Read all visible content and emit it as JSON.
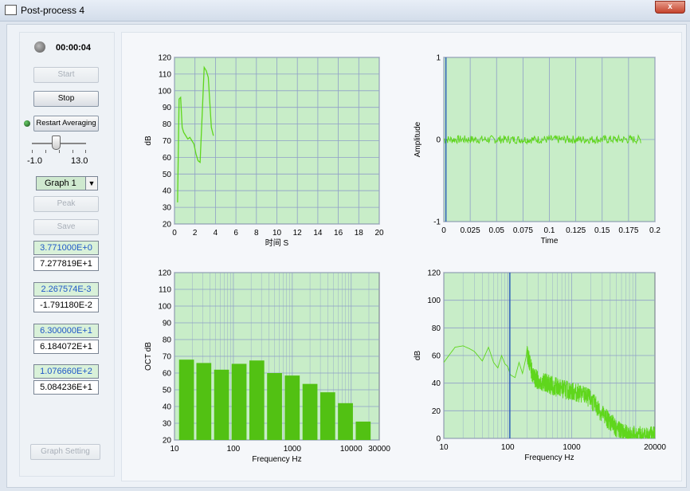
{
  "window": {
    "title": "Post-process 4",
    "close_label": "x"
  },
  "left_panel": {
    "elapsed_time": "00:00:04",
    "start_label": "Start",
    "stop_label": "Stop",
    "restart_label": "Restart Averaging",
    "slider_min": "-1.0",
    "slider_max": "13.0",
    "graph_select": "Graph 1",
    "peak_label": "Peak",
    "save_label": "Save",
    "values": [
      "3.771000E+0",
      "7.277819E+1",
      "2.267574E-3",
      "-1.791180E-2",
      "6.300000E+1",
      "6.184072E+1",
      "1.076660E+2",
      "5.084236E+1"
    ],
    "graph_setting_label": "Graph Setting"
  },
  "colors": {
    "plot_bg": "#c8edc8",
    "bar": "#52c113",
    "line": "#5fd61c",
    "cursor": "#2c5fb8",
    "grid": "#8f9fc7"
  },
  "chart_data": [
    {
      "type": "line",
      "xlabel": "时间 S",
      "ylabel": "dB",
      "xlim": [
        0,
        20
      ],
      "ylim": [
        20,
        120
      ],
      "x_ticks": [
        "0",
        "2",
        "4",
        "6",
        "8",
        "10",
        "12",
        "14",
        "16",
        "18",
        "20"
      ],
      "y_ticks": [
        "20",
        "30",
        "40",
        "50",
        "60",
        "70",
        "80",
        "90",
        "100",
        "110",
        "120"
      ],
      "series": [
        {
          "x": [
            0.3,
            0.45,
            0.6,
            0.75,
            0.9,
            1.1,
            1.3,
            1.5,
            1.7,
            1.9,
            2.1,
            2.3,
            2.5,
            2.7,
            2.9,
            3.1,
            3.3,
            3.6,
            3.8
          ],
          "y": [
            33,
            95,
            96,
            78,
            75,
            73,
            71,
            72,
            70,
            68,
            62,
            58,
            57,
            85,
            114,
            112,
            108,
            78,
            73
          ]
        }
      ]
    },
    {
      "type": "line",
      "xlabel": "Time",
      "ylabel": "Amplitude",
      "xlim": [
        0,
        0.2
      ],
      "ylim": [
        -1,
        1
      ],
      "x_ticks": [
        "0",
        "0.025",
        "0.05",
        "0.075",
        "0.1",
        "0.125",
        "0.15",
        "0.175",
        "0.2"
      ],
      "y_ticks": [
        "-1",
        "0",
        "1"
      ],
      "signal_range": [
        0,
        0.187
      ],
      "noise_amplitude": 0.05,
      "cursor_x": 0.002
    },
    {
      "type": "bar",
      "xlabel": "Frequency Hz",
      "ylabel": "OCT dB",
      "scale": "log",
      "xlim": [
        10,
        30000
      ],
      "ylim": [
        20,
        120
      ],
      "x_ticks": [
        "10",
        "100",
        "1000",
        "10000",
        "30000"
      ],
      "y_ticks": [
        "20",
        "30",
        "40",
        "50",
        "60",
        "70",
        "80",
        "90",
        "100",
        "110",
        "120"
      ],
      "categories": [
        16,
        31.5,
        63,
        125,
        250,
        500,
        1000,
        2000,
        4000,
        8000,
        16000
      ],
      "values": [
        68,
        66,
        62,
        65.5,
        67.5,
        60,
        58.5,
        53.5,
        48.5,
        42,
        31
      ]
    },
    {
      "type": "line",
      "xlabel": "Frequency Hz",
      "ylabel": "dB",
      "scale": "log",
      "xlim": [
        10,
        20000
      ],
      "ylim": [
        0,
        120
      ],
      "x_ticks": [
        "10",
        "100",
        "1000",
        "20000"
      ],
      "y_ticks": [
        "0",
        "20",
        "40",
        "60",
        "80",
        "100",
        "120"
      ],
      "cursor_x": 107.7,
      "series": [
        {
          "x": [
            10,
            12,
            15,
            20,
            25,
            30,
            40,
            50,
            60,
            70,
            80,
            90,
            100,
            110,
            130,
            150,
            170,
            200,
            250,
            300,
            400,
            500,
            700,
            1000,
            1500,
            2000,
            3000,
            4000,
            5000,
            7000,
            10000,
            15000,
            20000
          ],
          "y": [
            55,
            60,
            66,
            67,
            65,
            63,
            56,
            66,
            55,
            51,
            60,
            54,
            52,
            46,
            44,
            55,
            47,
            62,
            45,
            42,
            40,
            38,
            36,
            34,
            32,
            28,
            18,
            12,
            7,
            3,
            2,
            2,
            3
          ]
        }
      ]
    }
  ]
}
